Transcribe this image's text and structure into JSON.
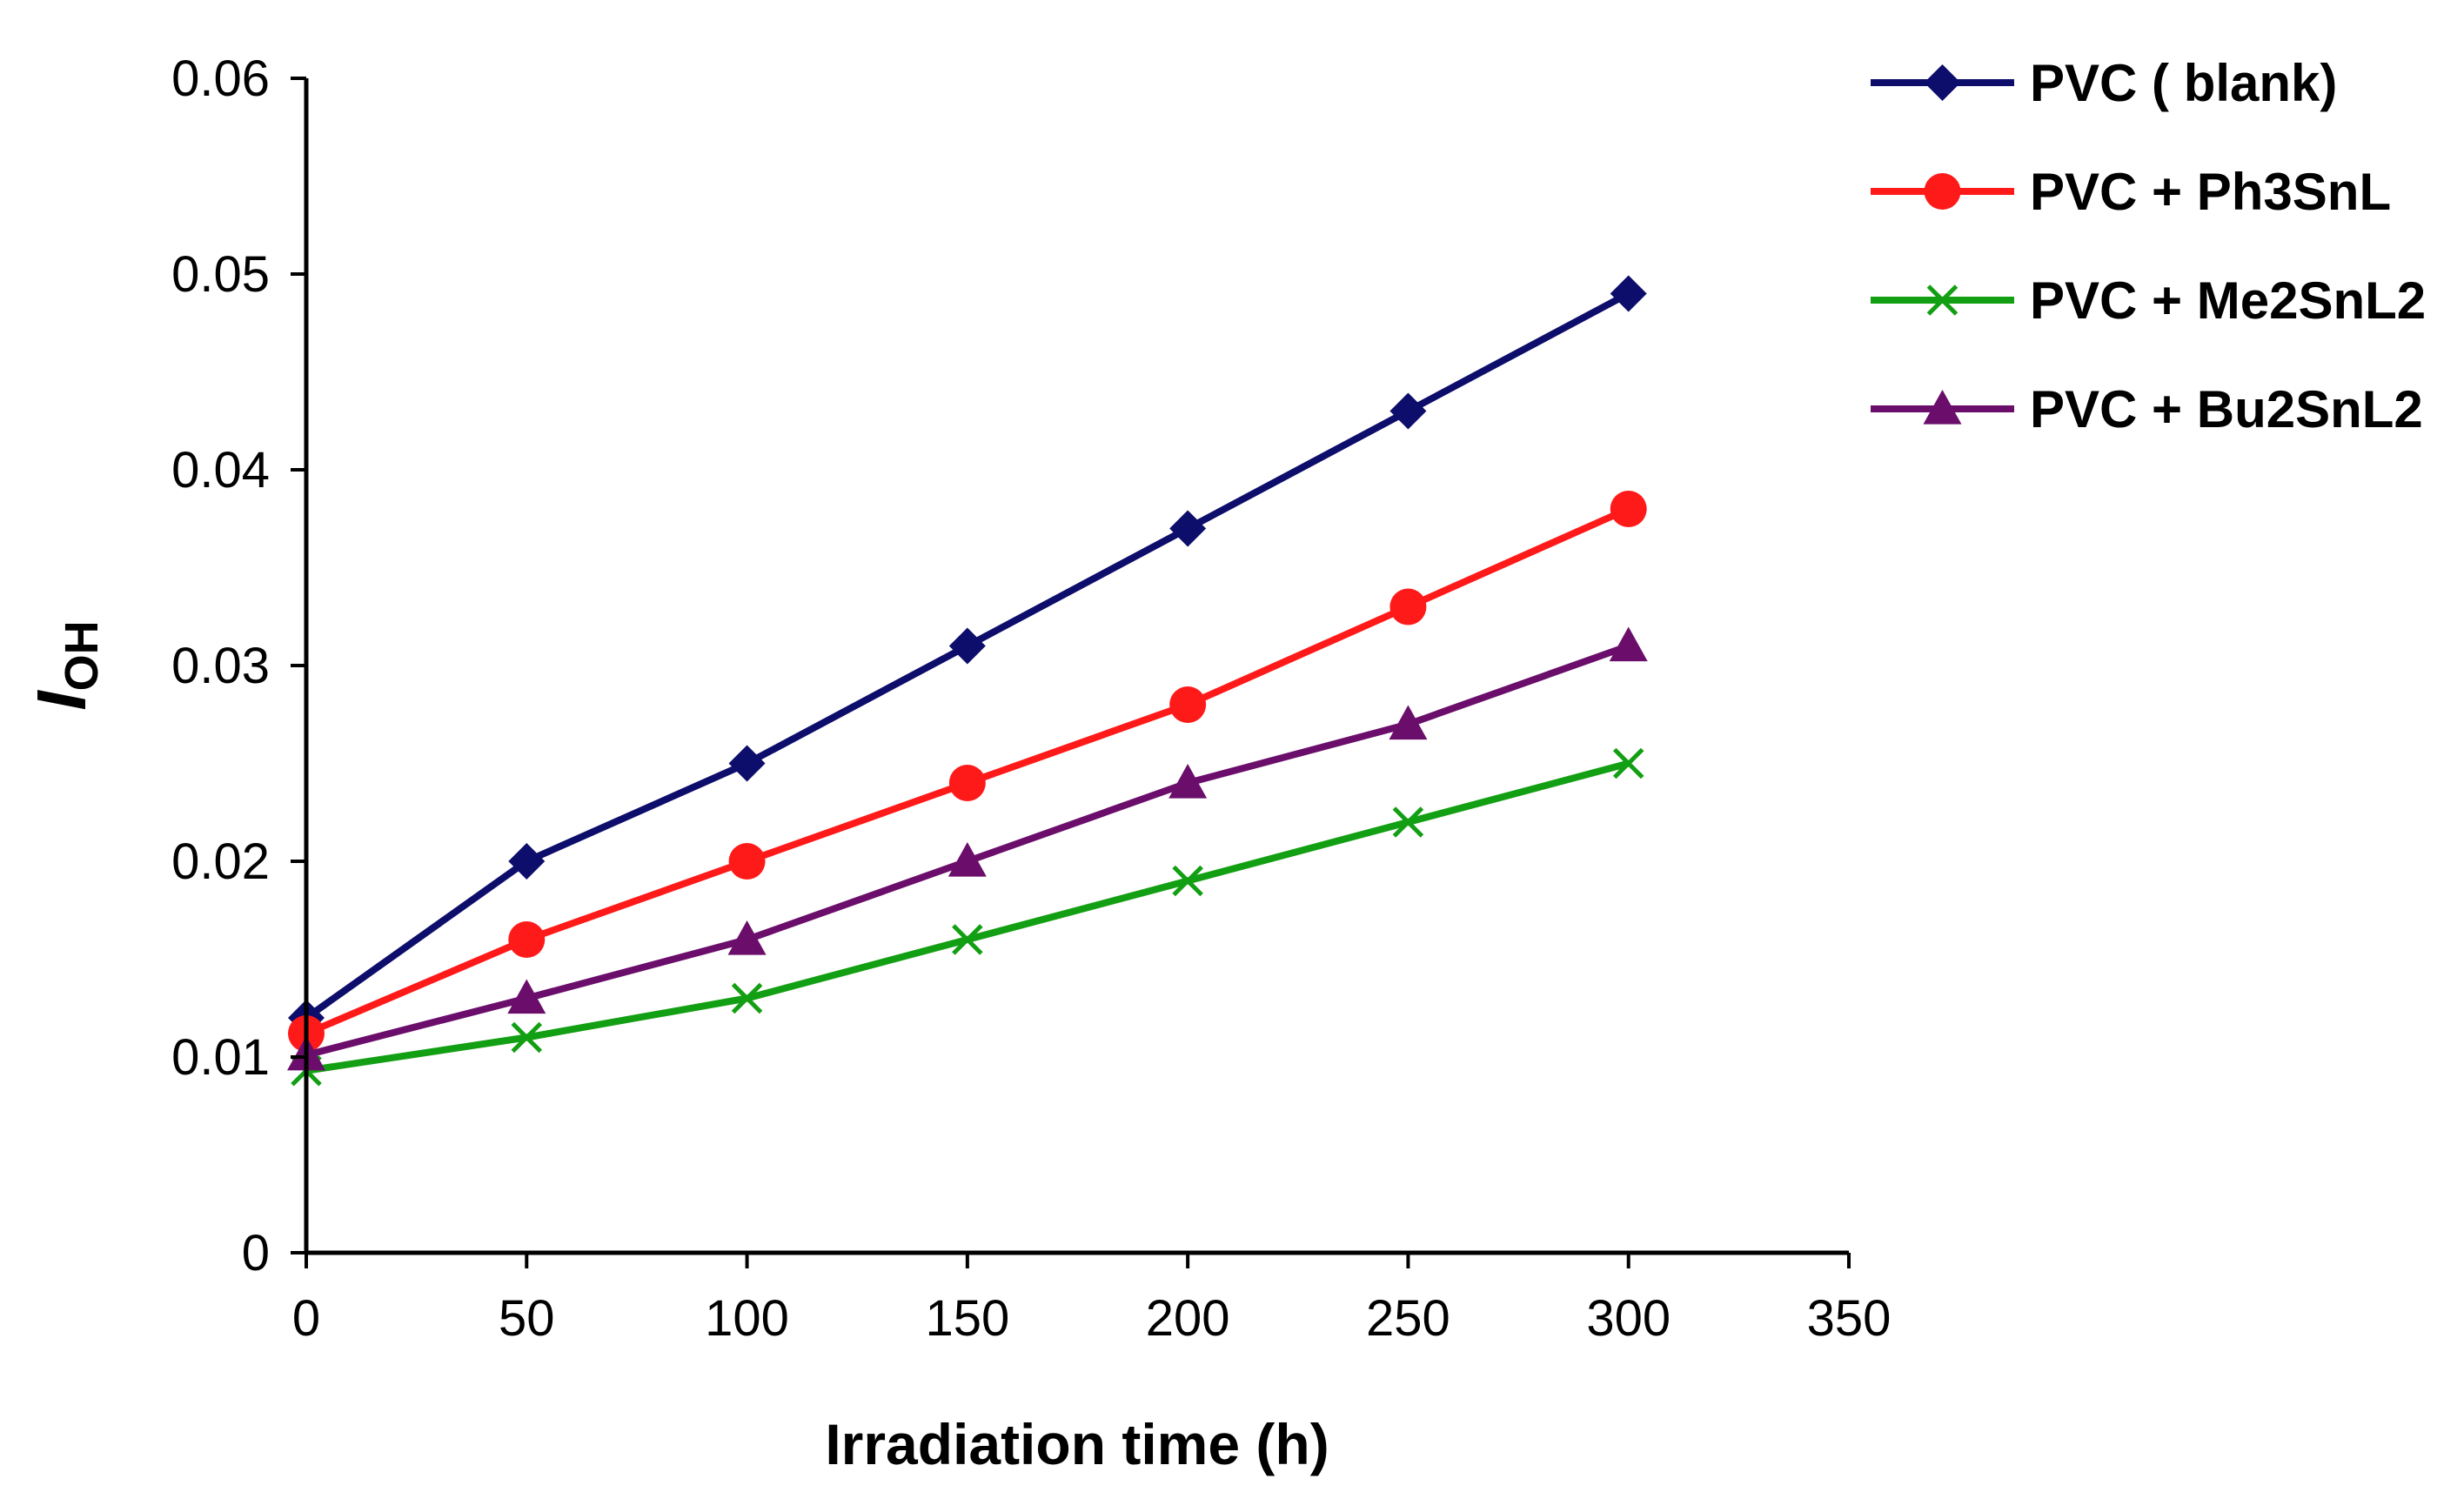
{
  "chart_data": {
    "type": "line",
    "title": "",
    "xlabel": "Irradiation time (h)",
    "ylabel": "I",
    "ylabel_subscript": "OH",
    "xlim": [
      0,
      350
    ],
    "ylim": [
      0,
      0.06
    ],
    "x_ticks": [
      "0",
      "50",
      "100",
      "150",
      "200",
      "250",
      "300",
      "350"
    ],
    "y_ticks": [
      "0",
      "0.01",
      "0.02",
      "0.03",
      "0.04",
      "0.05",
      "0.06"
    ],
    "grid": false,
    "legend_position": "top-right",
    "x": [
      0,
      50,
      100,
      150,
      200,
      250,
      300
    ],
    "series": [
      {
        "name": "PVC ( blank)",
        "marker": "diamond",
        "color": "#0d0d6b",
        "values": [
          0.012,
          0.02,
          0.025,
          0.031,
          0.037,
          0.043,
          0.049
        ]
      },
      {
        "name": "PVC + Ph3SnL",
        "marker": "circle",
        "color": "#ff1a1a",
        "values": [
          0.0112,
          0.016,
          0.02,
          0.024,
          0.028,
          0.033,
          0.038
        ]
      },
      {
        "name": "PVC + Me2SnL2",
        "marker": "x",
        "color": "#139f13",
        "values": [
          0.0093,
          0.011,
          0.013,
          0.016,
          0.019,
          0.022,
          0.025
        ]
      },
      {
        "name": "PVC + Bu2SnL2",
        "marker": "triangle",
        "color": "#6b0e6b",
        "values": [
          0.0101,
          0.013,
          0.016,
          0.02,
          0.024,
          0.027,
          0.031
        ]
      }
    ]
  }
}
